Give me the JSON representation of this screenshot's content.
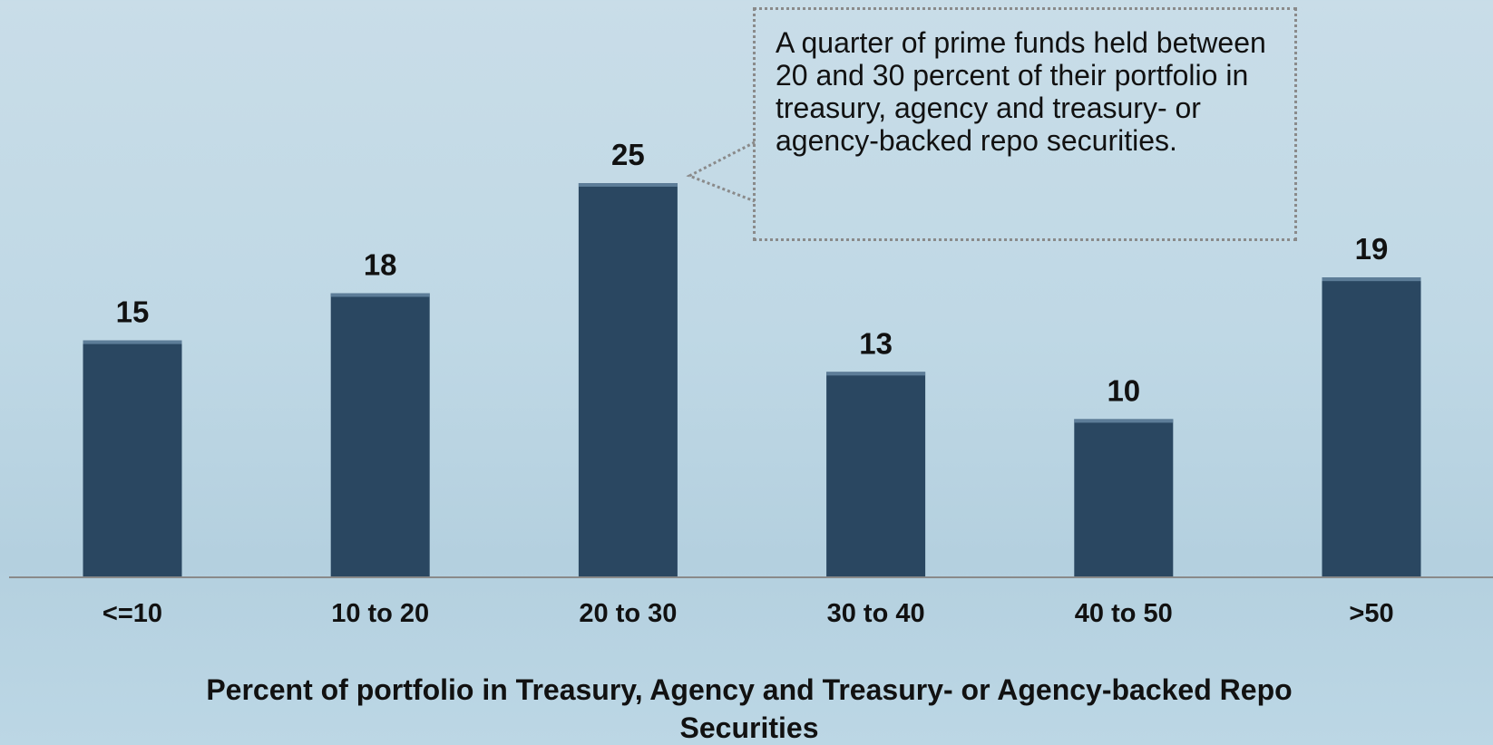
{
  "chart_data": {
    "type": "bar",
    "categories": [
      "<=10",
      "10 to 20",
      "20 to 30",
      "30 to 40",
      "40 to 50",
      ">50"
    ],
    "values": [
      15,
      18,
      25,
      13,
      10,
      19
    ],
    "color": "#2a4761",
    "x_label": "Percent of portfolio in Treasury, Agency and Treasury- or Agency-backed Repo Securities",
    "annotation": "A quarter of prime funds held between 20 and 30 percent of their portfolio in treasury, agency and treasury- or agency-backed repo securities."
  }
}
